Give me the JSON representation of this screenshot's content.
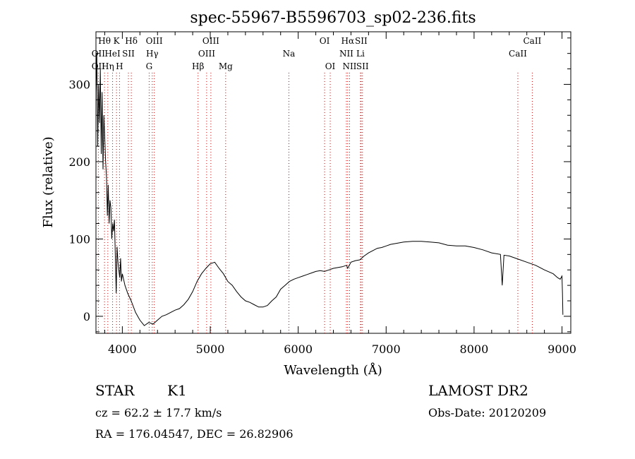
{
  "chart_data": {
    "type": "line",
    "title": "spec-55967-B5596703_sp02-236.fits",
    "xlabel": "Wavelength (Å)",
    "ylabel": "Flux (relative)",
    "xlim": [
      3700,
      9100
    ],
    "ylim": [
      -22,
      368
    ],
    "xticks": [
      4000,
      5000,
      6000,
      7000,
      8000,
      9000
    ],
    "yticks": [
      0,
      100,
      200,
      300
    ],
    "grid": false,
    "line_color": "#000000",
    "marker_color": "#cc0000",
    "series": [
      {
        "values": [
          [
            3700,
            290
          ],
          [
            3710,
            340
          ],
          [
            3720,
            220
          ],
          [
            3730,
            300
          ],
          [
            3740,
            250
          ],
          [
            3750,
            320
          ],
          [
            3760,
            210
          ],
          [
            3770,
            290
          ],
          [
            3780,
            190
          ],
          [
            3790,
            260
          ],
          [
            3800,
            230
          ],
          [
            3810,
            200
          ],
          [
            3820,
            180
          ],
          [
            3830,
            130
          ],
          [
            3840,
            170
          ],
          [
            3850,
            120
          ],
          [
            3860,
            150
          ],
          [
            3870,
            140
          ],
          [
            3880,
            100
          ],
          [
            3890,
            120
          ],
          [
            3900,
            110
          ],
          [
            3910,
            125
          ],
          [
            3920,
            80
          ],
          [
            3930,
            30
          ],
          [
            3940,
            90
          ],
          [
            3950,
            70
          ],
          [
            3960,
            60
          ],
          [
            3970,
            50
          ],
          [
            3980,
            75
          ],
          [
            3990,
            45
          ],
          [
            4000,
            55
          ],
          [
            4030,
            40
          ],
          [
            4060,
            30
          ],
          [
            4100,
            20
          ],
          [
            4150,
            5
          ],
          [
            4200,
            -5
          ],
          [
            4250,
            -12
          ],
          [
            4300,
            -8
          ],
          [
            4350,
            -10
          ],
          [
            4400,
            -5
          ],
          [
            4450,
            0
          ],
          [
            4500,
            2
          ],
          [
            4550,
            5
          ],
          [
            4600,
            8
          ],
          [
            4650,
            10
          ],
          [
            4700,
            15
          ],
          [
            4750,
            22
          ],
          [
            4800,
            32
          ],
          [
            4850,
            45
          ],
          [
            4900,
            55
          ],
          [
            4950,
            62
          ],
          [
            5000,
            68
          ],
          [
            5050,
            70
          ],
          [
            5100,
            62
          ],
          [
            5150,
            55
          ],
          [
            5200,
            45
          ],
          [
            5250,
            40
          ],
          [
            5300,
            32
          ],
          [
            5350,
            25
          ],
          [
            5400,
            20
          ],
          [
            5450,
            18
          ],
          [
            5500,
            15
          ],
          [
            5550,
            12
          ],
          [
            5600,
            12
          ],
          [
            5650,
            14
          ],
          [
            5700,
            20
          ],
          [
            5750,
            25
          ],
          [
            5800,
            35
          ],
          [
            5850,
            40
          ],
          [
            5900,
            45
          ],
          [
            5950,
            48
          ],
          [
            6000,
            50
          ],
          [
            6050,
            52
          ],
          [
            6100,
            54
          ],
          [
            6150,
            56
          ],
          [
            6200,
            58
          ],
          [
            6250,
            59
          ],
          [
            6300,
            58
          ],
          [
            6350,
            60
          ],
          [
            6400,
            62
          ],
          [
            6450,
            63
          ],
          [
            6500,
            64
          ],
          [
            6550,
            66
          ],
          [
            6563,
            62
          ],
          [
            6600,
            70
          ],
          [
            6650,
            72
          ],
          [
            6700,
            73
          ],
          [
            6750,
            78
          ],
          [
            6800,
            82
          ],
          [
            6850,
            85
          ],
          [
            6900,
            88
          ],
          [
            6950,
            89
          ],
          [
            7000,
            91
          ],
          [
            7050,
            93
          ],
          [
            7100,
            94
          ],
          [
            7150,
            95
          ],
          [
            7200,
            96
          ],
          [
            7300,
            97
          ],
          [
            7400,
            97
          ],
          [
            7500,
            96
          ],
          [
            7600,
            95
          ],
          [
            7700,
            92
          ],
          [
            7800,
            91
          ],
          [
            7900,
            91
          ],
          [
            8000,
            89
          ],
          [
            8100,
            86
          ],
          [
            8200,
            82
          ],
          [
            8300,
            80
          ],
          [
            8320,
            40
          ],
          [
            8340,
            79
          ],
          [
            8400,
            78
          ],
          [
            8500,
            74
          ],
          [
            8600,
            70
          ],
          [
            8700,
            66
          ],
          [
            8800,
            60
          ],
          [
            8900,
            55
          ],
          [
            8950,
            50
          ],
          [
            8980,
            48
          ],
          [
            9000,
            52
          ],
          [
            9005,
            30
          ],
          [
            9010,
            2
          ]
        ]
      }
    ],
    "spectral_lines": [
      {
        "label": "Hθ",
        "x": 3797,
        "row": 0
      },
      {
        "label": "OII",
        "x": 3727,
        "row": 1
      },
      {
        "label": "OII",
        "x": 3727,
        "row": 2
      },
      {
        "label": "K",
        "x": 3934,
        "row": 0
      },
      {
        "label": "HeI",
        "x": 3889,
        "row": 1
      },
      {
        "label": "Hη",
        "x": 3835,
        "row": 2
      },
      {
        "label": "Hδ",
        "x": 4102,
        "row": 0
      },
      {
        "label": "SII",
        "x": 4069,
        "row": 1
      },
      {
        "label": "H",
        "x": 3968,
        "row": 2
      },
      {
        "label": "OIII",
        "x": 4363,
        "row": 0
      },
      {
        "label": "Hγ",
        "x": 4340,
        "row": 1
      },
      {
        "label": "G",
        "x": 4305,
        "row": 2
      },
      {
        "label": "OIII",
        "x": 5007,
        "row": 0
      },
      {
        "label": "OIII",
        "x": 4959,
        "row": 1
      },
      {
        "label": "Hβ",
        "x": 4861,
        "row": 2
      },
      {
        "label": "Mg",
        "x": 5175,
        "row": 2
      },
      {
        "label": "Na",
        "x": 5894,
        "row": 1
      },
      {
        "label": "OI",
        "x": 6300,
        "row": 0
      },
      {
        "label": "OI",
        "x": 6364,
        "row": 2
      },
      {
        "label": "Hα",
        "x": 6563,
        "row": 0
      },
      {
        "label": "SII",
        "x": 6716,
        "row": 0
      },
      {
        "label": "NII",
        "x": 6548,
        "row": 1
      },
      {
        "label": "Li",
        "x": 6708,
        "row": 1
      },
      {
        "label": "NII",
        "x": 6584,
        "row": 2
      },
      {
        "label": "SII",
        "x": 6731,
        "row": 2
      },
      {
        "label": "CaII",
        "x": 8662,
        "row": 0
      },
      {
        "label": "CaII",
        "x": 8498,
        "row": 1
      }
    ]
  },
  "footer": {
    "left": {
      "class": "STAR",
      "subclass": "K1",
      "redshift": "cz = 62.2 ± 17.7 km/s",
      "coords": "RA = 176.04547, DEC =  26.82906"
    },
    "right": {
      "release": "LAMOST DR2",
      "obs_date": "Obs-Date: 20120209"
    }
  }
}
